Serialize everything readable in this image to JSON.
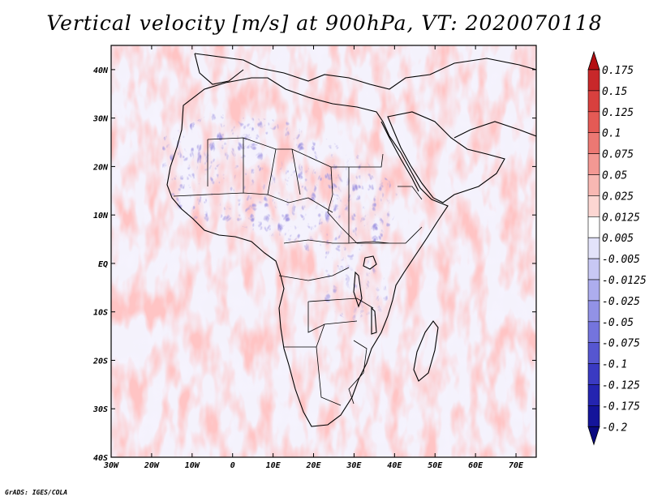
{
  "figure": {
    "title": "Vertical velocity [m/s] at 900hPa, VT: 2020070118",
    "credit": "GrADS: IGES/COLA"
  },
  "map": {
    "projection": "latlon",
    "lon_range": [
      -30,
      75
    ],
    "lat_range": [
      -40,
      45
    ],
    "x_ticks": [
      "30W",
      "20W",
      "10W",
      "0",
      "10E",
      "20E",
      "30E",
      "40E",
      "50E",
      "60E",
      "70E"
    ],
    "y_ticks": [
      "40N",
      "30N",
      "20N",
      "10N",
      "EQ",
      "10S",
      "20S",
      "30S",
      "40S"
    ]
  },
  "colorbar": {
    "labels": [
      "0.175",
      "0.15",
      "0.125",
      "0.1",
      "0.075",
      "0.05",
      "0.025",
      "0.0125",
      "0.005",
      "-0.005",
      "-0.0125",
      "-0.025",
      "-0.05",
      "-0.075",
      "-0.1",
      "-0.125",
      "-0.175",
      "-0.2"
    ],
    "colors": [
      "#b40f12",
      "#c8282a",
      "#d8403e",
      "#e45a55",
      "#ec7873",
      "#f39893",
      "#f8b8b3",
      "#fcd6d2",
      "#ffffff",
      "#e3e3fa",
      "#c8c8f4",
      "#adadee",
      "#9292e6",
      "#7474dd",
      "#5656d0",
      "#3a3ac2",
      "#2424b0",
      "#14149a",
      "#0a0a80"
    ]
  }
}
